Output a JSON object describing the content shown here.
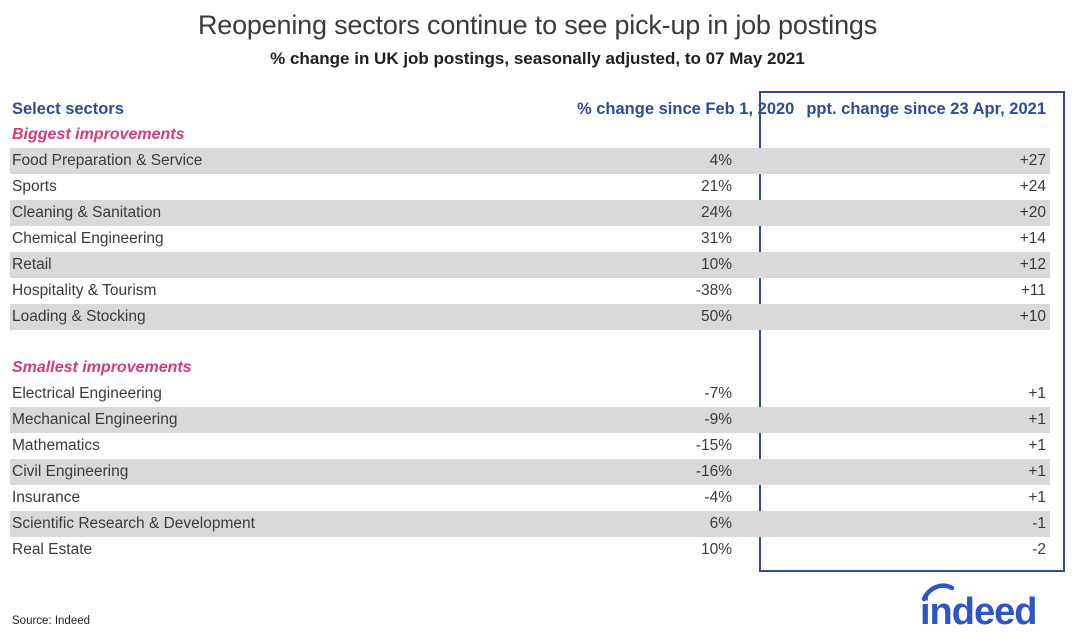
{
  "title": "Reopening sectors continue to see pick-up in job postings",
  "subtitle": "% change in UK job postings, seasonally adjusted, to 07 May 2021",
  "table": {
    "col_sector": "Select sectors",
    "col_pct": "% change since Feb 1, 2020",
    "col_ppt": "ppt. change since 23 Apr, 2021",
    "sections": [
      {
        "label": "Biggest improvements",
        "rows": [
          {
            "sector": "Food Preparation & Service",
            "pct": "4%",
            "ppt": "+27"
          },
          {
            "sector": "Sports",
            "pct": "21%",
            "ppt": "+24"
          },
          {
            "sector": "Cleaning & Sanitation",
            "pct": "24%",
            "ppt": "+20"
          },
          {
            "sector": "Chemical Engineering",
            "pct": "31%",
            "ppt": "+14"
          },
          {
            "sector": "Retail",
            "pct": "10%",
            "ppt": "+12"
          },
          {
            "sector": "Hospitality & Tourism",
            "pct": "-38%",
            "ppt": "+11"
          },
          {
            "sector": "Loading & Stocking",
            "pct": "50%",
            "ppt": "+10"
          }
        ]
      },
      {
        "label": "Smallest improvements",
        "rows": [
          {
            "sector": "Electrical Engineering",
            "pct": "-7%",
            "ppt": "+1"
          },
          {
            "sector": "Mechanical Engineering",
            "pct": "-9%",
            "ppt": "+1"
          },
          {
            "sector": "Mathematics",
            "pct": "-15%",
            "ppt": "+1"
          },
          {
            "sector": "Civil Engineering",
            "pct": "-16%",
            "ppt": "+1"
          },
          {
            "sector": "Insurance",
            "pct": "-4%",
            "ppt": "+1"
          },
          {
            "sector": "Scientific Research & Development",
            "pct": "6%",
            "ppt": "-1"
          },
          {
            "sector": "Real Estate",
            "pct": "10%",
            "ppt": "-2"
          }
        ]
      }
    ]
  },
  "footer": {
    "source": "Source: Indeed",
    "logo_text": "indeed"
  },
  "colors": {
    "header_blue": "#2a4b9e",
    "section_pink": "#d6397c",
    "stripe_gray": "#d9d9d9",
    "logo_blue": "#2d55c8"
  },
  "chart_data": {
    "type": "table",
    "title": "Reopening sectors continue to see pick-up in job postings",
    "subtitle": "% change in UK job postings, seasonally adjusted, to 07 May 2021",
    "columns": [
      "Select sectors",
      "% change since Feb 1, 2020",
      "ppt. change since 23 Apr, 2021"
    ],
    "sections": [
      {
        "label": "Biggest improvements",
        "rows": [
          {
            "sector": "Food Preparation & Service",
            "pct_change_since_feb_2020": 4,
            "ppt_change_since_23_apr_2021": 27
          },
          {
            "sector": "Sports",
            "pct_change_since_feb_2020": 21,
            "ppt_change_since_23_apr_2021": 24
          },
          {
            "sector": "Cleaning & Sanitation",
            "pct_change_since_feb_2020": 24,
            "ppt_change_since_23_apr_2021": 20
          },
          {
            "sector": "Chemical Engineering",
            "pct_change_since_feb_2020": 31,
            "ppt_change_since_23_apr_2021": 14
          },
          {
            "sector": "Retail",
            "pct_change_since_feb_2020": 10,
            "ppt_change_since_23_apr_2021": 12
          },
          {
            "sector": "Hospitality & Tourism",
            "pct_change_since_feb_2020": -38,
            "ppt_change_since_23_apr_2021": 11
          },
          {
            "sector": "Loading & Stocking",
            "pct_change_since_feb_2020": 50,
            "ppt_change_since_23_apr_2021": 10
          }
        ]
      },
      {
        "label": "Smallest improvements",
        "rows": [
          {
            "sector": "Electrical Engineering",
            "pct_change_since_feb_2020": -7,
            "ppt_change_since_23_apr_2021": 1
          },
          {
            "sector": "Mechanical Engineering",
            "pct_change_since_feb_2020": -9,
            "ppt_change_since_23_apr_2021": 1
          },
          {
            "sector": "Mathematics",
            "pct_change_since_feb_2020": -15,
            "ppt_change_since_23_apr_2021": 1
          },
          {
            "sector": "Civil Engineering",
            "pct_change_since_feb_2020": -16,
            "ppt_change_since_23_apr_2021": 1
          },
          {
            "sector": "Insurance",
            "pct_change_since_feb_2020": -4,
            "ppt_change_since_23_apr_2021": 1
          },
          {
            "sector": "Scientific Research & Development",
            "pct_change_since_feb_2020": 6,
            "ppt_change_since_23_apr_2021": -1
          },
          {
            "sector": "Real Estate",
            "pct_change_since_feb_2020": 10,
            "ppt_change_since_23_apr_2021": -2
          }
        ]
      }
    ]
  }
}
